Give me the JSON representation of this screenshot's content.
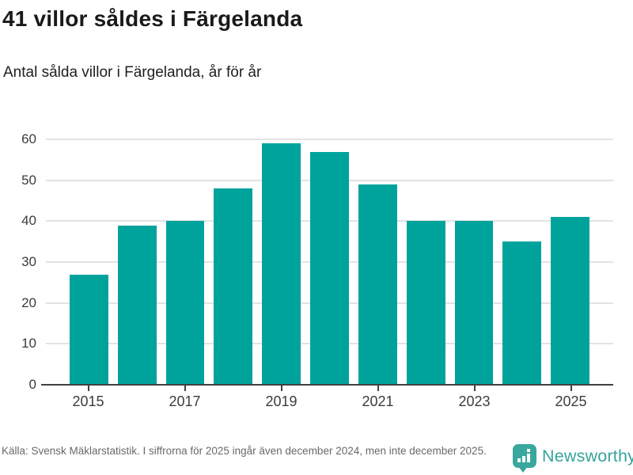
{
  "header": {
    "title": "41 villor såldes i Färgelanda",
    "subtitle": "Antal sålda villor i Färgelanda, år för år"
  },
  "chart_data": {
    "type": "bar",
    "title": "41 villor såldes i Färgelanda",
    "subtitle": "Antal sålda villor i Färgelanda, år för år",
    "categories": [
      "2015",
      "2016",
      "2017",
      "2018",
      "2019",
      "2020",
      "2021",
      "2022",
      "2023",
      "2024",
      "2025"
    ],
    "values": [
      27,
      39,
      40,
      48,
      59,
      57,
      49,
      40,
      40,
      35,
      41
    ],
    "xlabel": "",
    "ylabel": "",
    "ylim": [
      0,
      60
    ],
    "yticks": [
      0,
      10,
      20,
      30,
      40,
      50,
      60
    ],
    "xtick_labels": [
      "2015",
      "2017",
      "2019",
      "2021",
      "2023",
      "2025"
    ],
    "xtick_indices": [
      0,
      2,
      4,
      6,
      8,
      10
    ],
    "grid": true,
    "legend": "none",
    "bar_color": "#00a39c"
  },
  "footer": {
    "source": "Källa: Svensk Mäklarstatistik. I siffrorna för 2025 ingår även december 2024, men inte december 2025.",
    "logo_text": "Newsworthy",
    "logo_color": "#3aa79e"
  }
}
